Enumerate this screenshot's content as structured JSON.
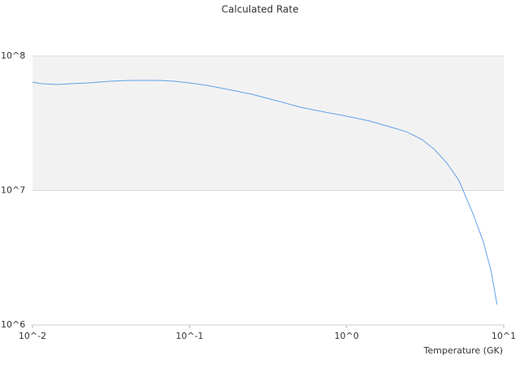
{
  "chart_data": {
    "type": "line",
    "title": "Calculated Rate",
    "x_label": "Temperature (GK)",
    "x": [
      0.01,
      0.01127,
      0.01429,
      0.01815,
      0.023,
      0.031,
      0.0418,
      0.0634,
      0.0804,
      0.1,
      0.1295,
      0.1745,
      0.2495,
      0.3565,
      0.509,
      0.728,
      1,
      1.396,
      1.88,
      2.39,
      3.03,
      3.62,
      4.33,
      5.18,
      6.34,
      7.4,
      8.34,
      9.06
    ],
    "series": [
      {
        "color": "#5fa2e6",
        "values": [
          64100000,
          62400000,
          61500000,
          62400000,
          63200000,
          65000000,
          65900000,
          65900000,
          65000000,
          63200000,
          60500000,
          56500000,
          52000000,
          46600000,
          41600000,
          38300000,
          35700000,
          32900000,
          29800000,
          27400000,
          23900000,
          20200000,
          16100000,
          11900000,
          6820000,
          4190000,
          2470000,
          1420000
        ]
      }
    ],
    "xlim": [
      0.01,
      10
    ],
    "ylim": [
      1000000,
      100000000
    ],
    "xticks": [
      {
        "value": 0.01,
        "label": "10^-2"
      },
      {
        "value": 0.1,
        "label": "10^-1"
      },
      {
        "value": 1,
        "label": "10^0"
      },
      {
        "value": 10,
        "label": "10^1"
      }
    ],
    "yticks": [
      {
        "value": 1000000,
        "label": "10^6"
      },
      {
        "value": 10000000,
        "label": "10^7"
      },
      {
        "value": 100000000,
        "label": "10^8"
      }
    ],
    "xscale": "log",
    "yscale": "log",
    "grid": true
  }
}
